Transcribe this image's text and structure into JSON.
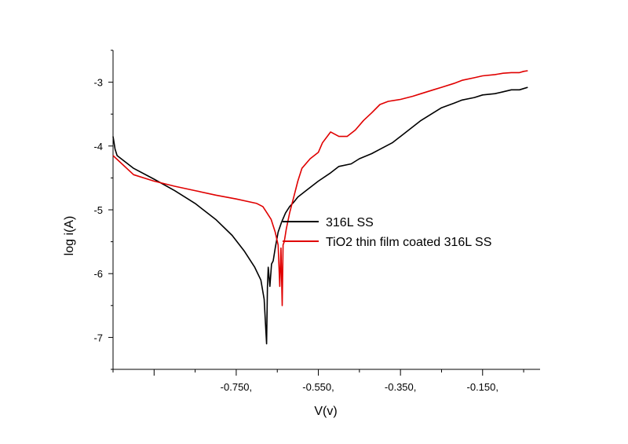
{
  "chart_data": {
    "type": "line",
    "xlabel": "V(v)",
    "ylabel": "log i(A)",
    "xlim": [
      -1.05,
      -0.01
    ],
    "ylim": [
      -7.5,
      -2.5
    ],
    "x_ticks": [
      -0.75,
      -0.55,
      -0.35,
      -0.15
    ],
    "x_tick_labels": [
      "-0.750,",
      "-0.550,",
      "-0.350,",
      "-0.150,"
    ],
    "y_ticks": [
      -7,
      -6,
      -5,
      -4,
      -3
    ],
    "y_tick_labels": [
      "-7",
      "-6",
      "-5",
      "-4",
      "-3"
    ],
    "grid": false,
    "legend_position": "right",
    "series": [
      {
        "name": "316L SS",
        "color": "#000000",
        "x": [
          -1.05,
          -1.045,
          -1.04,
          -1.0,
          -0.95,
          -0.9,
          -0.85,
          -0.8,
          -0.76,
          -0.73,
          -0.705,
          -0.69,
          -0.682,
          -0.676,
          -0.674,
          -0.672,
          -0.668,
          -0.664,
          -0.66,
          -0.655,
          -0.648,
          -0.64,
          -0.63,
          -0.62,
          -0.61,
          -0.6,
          -0.58,
          -0.55,
          -0.52,
          -0.5,
          -0.47,
          -0.45,
          -0.42,
          -0.4,
          -0.37,
          -0.35,
          -0.33,
          -0.3,
          -0.27,
          -0.25,
          -0.22,
          -0.2,
          -0.17,
          -0.15,
          -0.12,
          -0.1,
          -0.08,
          -0.06,
          -0.05,
          -0.04
        ],
        "y": [
          -3.85,
          -4.05,
          -4.15,
          -4.35,
          -4.52,
          -4.7,
          -4.9,
          -5.15,
          -5.4,
          -5.65,
          -5.9,
          -6.1,
          -6.4,
          -7.1,
          -6.2,
          -5.9,
          -6.2,
          -5.85,
          -5.8,
          -5.6,
          -5.35,
          -5.2,
          -5.05,
          -4.95,
          -4.88,
          -4.8,
          -4.7,
          -4.55,
          -4.42,
          -4.32,
          -4.28,
          -4.2,
          -4.12,
          -4.05,
          -3.95,
          -3.85,
          -3.75,
          -3.6,
          -3.48,
          -3.4,
          -3.33,
          -3.28,
          -3.24,
          -3.2,
          -3.18,
          -3.15,
          -3.12,
          -3.12,
          -3.1,
          -3.08
        ]
      },
      {
        "name": "TiO2 thin film coated 316L SS",
        "color": "#e00000",
        "x": [
          -1.05,
          -1.0,
          -0.95,
          -0.9,
          -0.85,
          -0.8,
          -0.75,
          -0.7,
          -0.685,
          -0.675,
          -0.665,
          -0.655,
          -0.648,
          -0.644,
          -0.641,
          -0.638,
          -0.636,
          -0.633,
          -0.628,
          -0.62,
          -0.61,
          -0.6,
          -0.59,
          -0.57,
          -0.55,
          -0.54,
          -0.52,
          -0.5,
          -0.48,
          -0.46,
          -0.44,
          -0.42,
          -0.4,
          -0.38,
          -0.35,
          -0.32,
          -0.3,
          -0.27,
          -0.25,
          -0.22,
          -0.2,
          -0.17,
          -0.15,
          -0.12,
          -0.1,
          -0.08,
          -0.06,
          -0.05,
          -0.04
        ],
        "y": [
          -4.15,
          -4.45,
          -4.55,
          -4.63,
          -4.7,
          -4.77,
          -4.83,
          -4.9,
          -4.95,
          -5.05,
          -5.15,
          -5.35,
          -5.55,
          -6.2,
          -5.6,
          -6.5,
          -5.55,
          -5.5,
          -5.3,
          -5.05,
          -4.8,
          -4.55,
          -4.35,
          -4.2,
          -4.1,
          -3.95,
          -3.78,
          -3.85,
          -3.85,
          -3.75,
          -3.6,
          -3.48,
          -3.35,
          -3.3,
          -3.27,
          -3.22,
          -3.18,
          -3.12,
          -3.08,
          -3.02,
          -2.97,
          -2.93,
          -2.9,
          -2.88,
          -2.86,
          -2.85,
          -2.85,
          -2.83,
          -2.82
        ]
      }
    ]
  }
}
